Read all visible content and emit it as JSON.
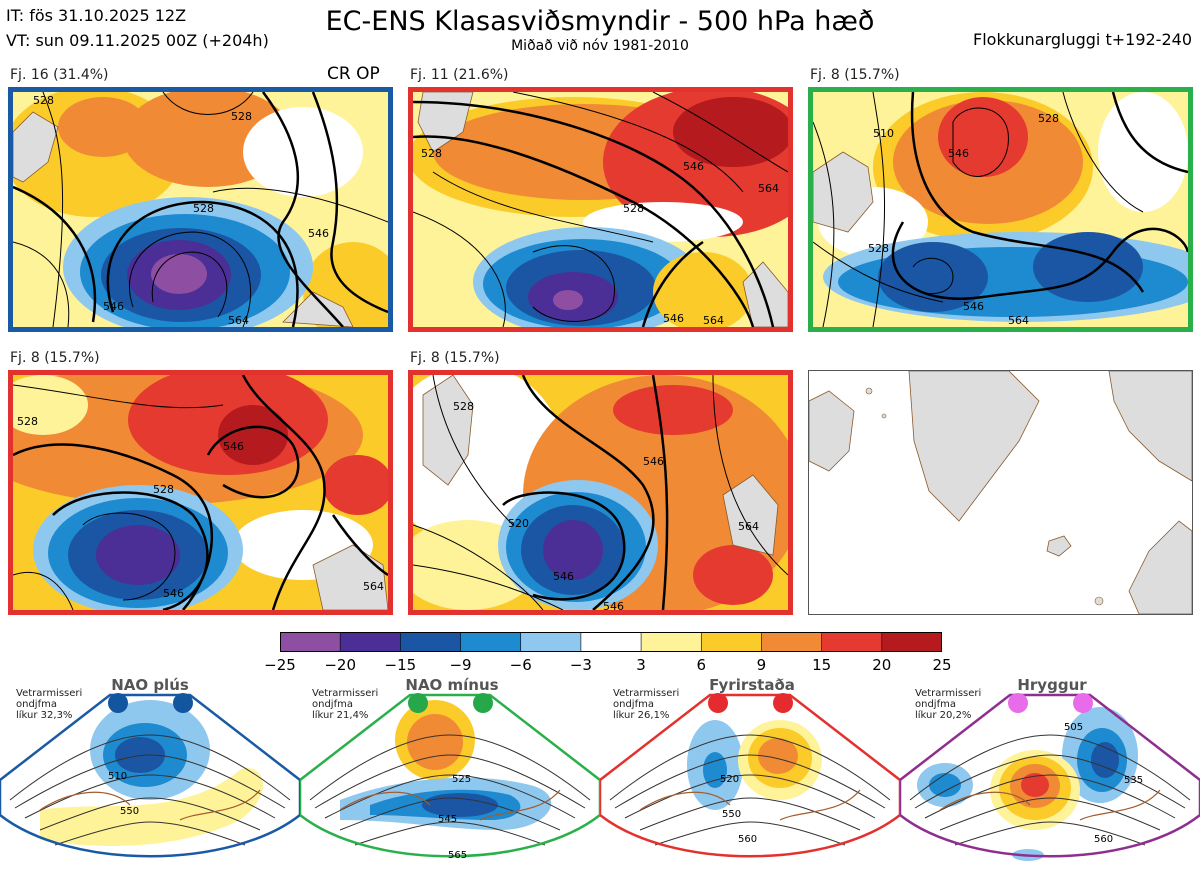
{
  "header": {
    "it_line": "IT: fös 31.10.2025 12Z",
    "vt_line": "VT: sun 09.11.2025 00Z  (+204h)",
    "title": "EC-ENS Klasasviðsmyndir - 500 hPa hæð",
    "subtitle": "Miðað við nóv 1981-2010",
    "window": "Flokkunargluggi t+192-240"
  },
  "panels": [
    {
      "label": "Fj. 16 (31.4%)",
      "extra": "CR OP",
      "border": "#1a5aa5",
      "contours": [
        "528",
        "546",
        "528",
        "546",
        "528",
        "564"
      ]
    },
    {
      "label": "Fj. 11 (21.6%)",
      "border": "#e3312e",
      "contours": [
        "528",
        "546",
        "564",
        "528",
        "546",
        "564"
      ]
    },
    {
      "label": "Fj. 8 (15.7%)",
      "border": "#2ab04a",
      "contours": [
        "510",
        "546",
        "528",
        "528",
        "546",
        "564"
      ]
    },
    {
      "label": "Fj. 8 (15.7%)",
      "border": "#e3312e",
      "contours": [
        "528",
        "546",
        "528",
        "564",
        "546"
      ]
    },
    {
      "label": "Fj. 8 (15.7%)",
      "border": "#e3312e",
      "contours": [
        "528",
        "546",
        "564",
        "546",
        "520",
        "546"
      ]
    }
  ],
  "colorbar": {
    "ticks": [
      "−25",
      "−20",
      "−15",
      "−9",
      "−6",
      "−3",
      "3",
      "6",
      "9",
      "15",
      "20",
      "25"
    ],
    "colors": [
      "#8e4ea2",
      "#4b2f96",
      "#1a56a4",
      "#1e8ad0",
      "#8ec8ee",
      "#ffffff",
      "#fff39a",
      "#fbcb2a",
      "#f18a34",
      "#e53a2f",
      "#b51a1e"
    ]
  },
  "regimes": [
    {
      "title": "NAO plús",
      "note": [
        "Vetrarmisseri",
        "ondjfma",
        "líkur 32,3%"
      ],
      "border": "#1a5aa5",
      "dot": "#1256a0",
      "contours": [
        "510",
        "550"
      ]
    },
    {
      "title": "NAO mínus",
      "note": [
        "Vetrarmisseri",
        "ondjfma",
        "líkur 21,4%"
      ],
      "border": "#2ab04a",
      "dot": "#25a74a",
      "contours": [
        "525",
        "545",
        "565"
      ]
    },
    {
      "title": "Fyrirstaða",
      "note": [
        "Vetrarmisseri",
        "ondjfma",
        "líkur 26,1%"
      ],
      "border": "#e3312e",
      "dot": "#e52b2d",
      "contours": [
        "520",
        "550",
        "560"
      ]
    },
    {
      "title": "Hryggur",
      "note": [
        "Vetrarmisseri",
        "ondjfma",
        "líkur 20,2%"
      ],
      "border": "#8e2f8f",
      "dot": "#e86bea",
      "contours": [
        "505",
        "535",
        "560"
      ]
    }
  ]
}
